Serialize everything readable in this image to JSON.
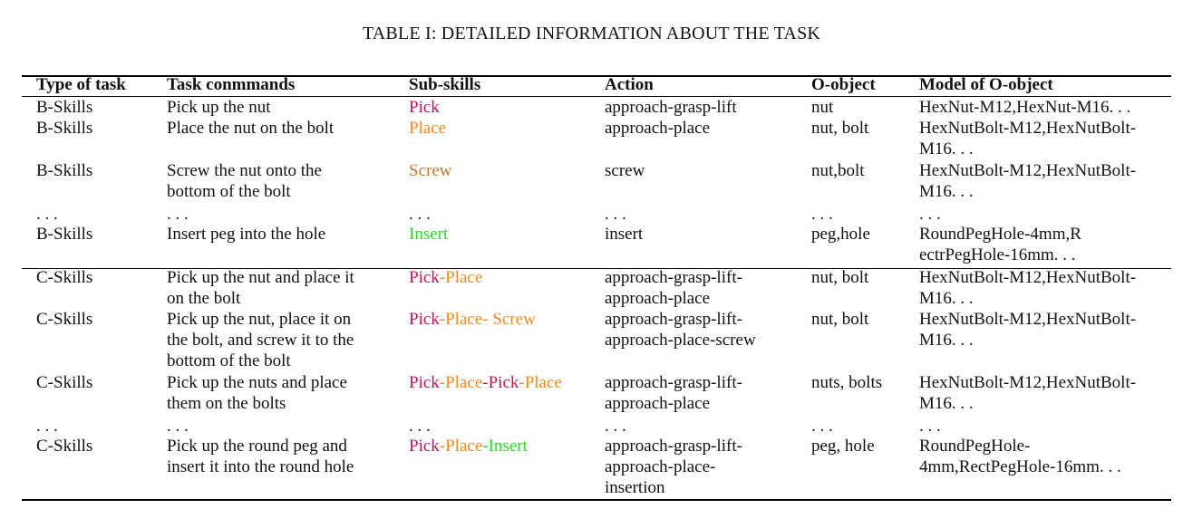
{
  "caption": "TABLE I: DETAILED INFORMATION ABOUT THE TASK",
  "colors": {
    "pick": "#c2185b",
    "place": "#f28a1e",
    "screw": "#c0782d",
    "insert": "#22dd22",
    "text": "#111111"
  },
  "headers": [
    "Type of task",
    "Task conmmands",
    "Sub-skills",
    "Action",
    "O-object",
    "Model of O-object"
  ],
  "rows": [
    {
      "type": "B-Skills",
      "command": "Pick up the nut",
      "subskills": [
        {
          "text": "Pick",
          "color": "pick"
        }
      ],
      "action": "approach-grasp-lift",
      "object": "nut",
      "model": "HexNut-M12,HexNut-M16. . ."
    },
    {
      "type": "B-Skills",
      "command": "Place the nut on the bolt",
      "subskills": [
        {
          "text": "Place",
          "color": "place"
        }
      ],
      "action": "approach-place",
      "object": "nut, bolt",
      "model": "HexNutBolt-M12,HexNutBolt-\nM16. . ."
    },
    {
      "type": "B-Skills",
      "command": "Screw the nut onto the\nbottom of the bolt",
      "subskills": [
        {
          "text": "Screw",
          "color": "screw"
        }
      ],
      "action": "screw",
      "object": "nut,bolt",
      "model": "HexNutBolt-M12,HexNutBolt-\nM16. . ."
    },
    {
      "type": ". . .",
      "command": ". . .",
      "subskills": [
        {
          "text": ". . .",
          "color": "text"
        }
      ],
      "action": ". . .",
      "object": ". . .",
      "model": ". . ."
    },
    {
      "type": "B-Skills",
      "command": "Insert peg into the hole",
      "subskills": [
        {
          "text": "Insert",
          "color": "insert"
        }
      ],
      "action": "insert",
      "object": "peg,hole",
      "model": "RoundPegHole-4mm,R\nectrPegHole-16mm. . ."
    },
    {
      "type": "C-Skills",
      "command": "Pick up the nut and place it\non the bolt",
      "subskills": [
        {
          "text": "Pick",
          "color": "pick"
        },
        {
          "text": "-",
          "color": "place"
        },
        {
          "text": "Place",
          "color": "place"
        }
      ],
      "action": "approach-grasp-lift-\napproach-place",
      "object": "nut, bolt",
      "model": "HexNutBolt-M12,HexNutBolt-\nM16. . ."
    },
    {
      "type": "C-Skills",
      "command": "Pick up the nut, place it on\nthe bolt, and screw it to the\nbottom of the bolt",
      "subskills": [
        {
          "text": "Pick",
          "color": "pick"
        },
        {
          "text": "-",
          "color": "place"
        },
        {
          "text": "Place",
          "color": "place"
        },
        {
          "text": "- ",
          "color": "place"
        },
        {
          "text": "Screw",
          "color": "place"
        }
      ],
      "action": "approach-grasp-lift-\napproach-place-screw",
      "object": "nut, bolt",
      "model": "HexNutBolt-M12,HexNutBolt-\nM16. . ."
    },
    {
      "type": "C-Skills",
      "command": "Pick up the nuts and place\nthem on the bolts",
      "subskills": [
        {
          "text": "Pick",
          "color": "pick"
        },
        {
          "text": "-",
          "color": "place"
        },
        {
          "text": "Place",
          "color": "place"
        },
        {
          "text": "-",
          "color": "pick"
        },
        {
          "text": "Pick",
          "color": "pick"
        },
        {
          "text": "-",
          "color": "place"
        },
        {
          "text": "Place",
          "color": "place"
        }
      ],
      "action": "approach-grasp-lift-\napproach-place",
      "object": "nuts, bolts",
      "model": "HexNutBolt-M12,HexNutBolt-\nM16. . ."
    },
    {
      "type": ". . .",
      "command": ". . .",
      "subskills": [
        {
          "text": ". . .",
          "color": "text"
        }
      ],
      "action": ". . .",
      "object": ". . .",
      "model": ". . ."
    },
    {
      "type": "C-Skills",
      "command": "Pick up the round peg and\ninsert it into the round hole",
      "subskills": [
        {
          "text": "Pick",
          "color": "pick"
        },
        {
          "text": "-",
          "color": "place"
        },
        {
          "text": "Place",
          "color": "place"
        },
        {
          "text": "-",
          "color": "insert"
        },
        {
          "text": "Insert",
          "color": "insert"
        }
      ],
      "action": "approach-grasp-lift-\napproach-place-\ninsertion",
      "object": "peg, hole",
      "model": "RoundPegHole-\n4mm,RectPegHole-16mm. . ."
    }
  ]
}
